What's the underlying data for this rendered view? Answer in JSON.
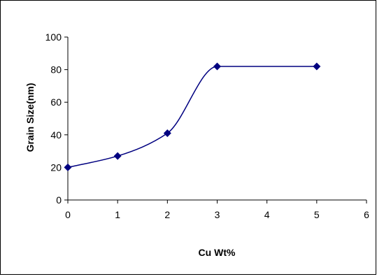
{
  "chart_data": {
    "type": "line",
    "title": "",
    "xlabel": "Cu Wt%",
    "ylabel": "Grain Size(nm)",
    "xlim": [
      0,
      6
    ],
    "ylim": [
      0,
      100
    ],
    "xticks": [
      "0",
      "1",
      "2",
      "3",
      "4",
      "5",
      "6"
    ],
    "yticks": [
      "0",
      "20",
      "40",
      "60",
      "80",
      "100"
    ],
    "grid": false,
    "legend": "none",
    "series": [
      {
        "color": "#000080",
        "marker": "diamond",
        "smooth": true,
        "x": [
          0,
          1,
          2,
          3,
          5
        ],
        "y": [
          20,
          27,
          41,
          82,
          82
        ]
      }
    ]
  }
}
